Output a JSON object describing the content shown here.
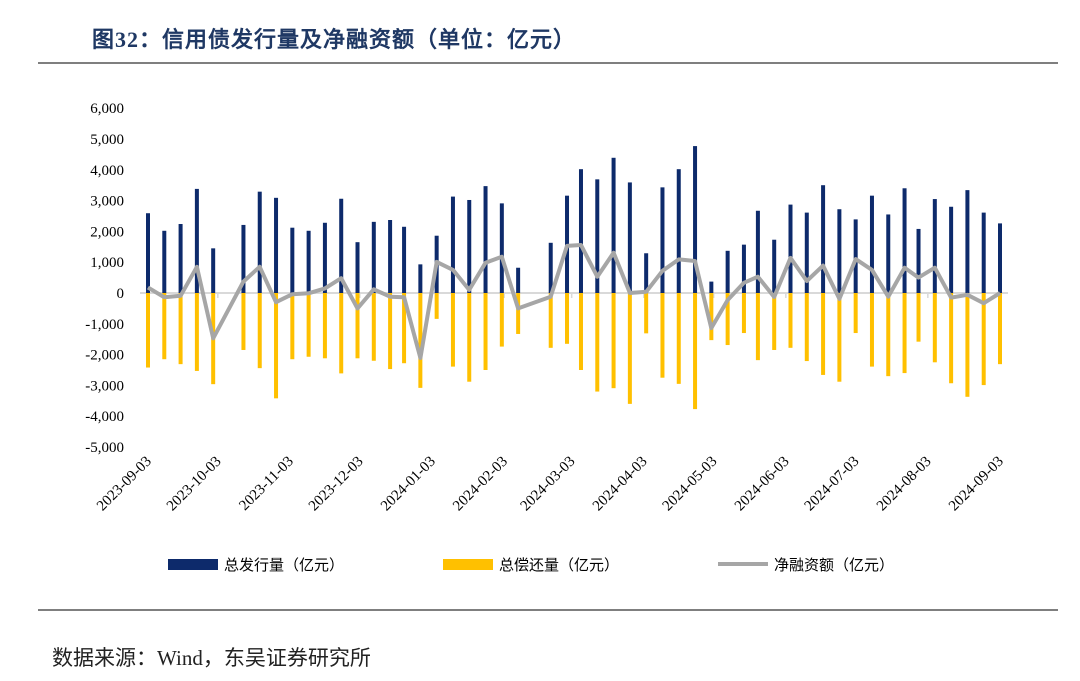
{
  "title": "图32：信用债发行量及净融资额（单位：亿元）",
  "source": "数据来源：Wind，东吴证券研究所",
  "colors": {
    "issuance": "#0d2a6b",
    "repayment": "#ffc000",
    "net": "#a6a6a6",
    "title": "#1f3864"
  },
  "chart_data": {
    "type": "bar",
    "title": "",
    "xlabel": "",
    "ylabel": "",
    "ylim": [
      -5000,
      6000
    ],
    "yticks": [
      6000,
      5000,
      4000,
      3000,
      2000,
      1000,
      0,
      -1000,
      -2000,
      -3000,
      -4000,
      -5000
    ],
    "ytick_labels": [
      "6,000",
      "5,000",
      "4,000",
      "3,000",
      "2,000",
      "1,000",
      "0",
      "-1,000",
      "-2,000",
      "-3,000",
      "-4,000",
      "-5,000"
    ],
    "xtick_labels": [
      "2023-09-03",
      "2023-10-03",
      "2023-11-03",
      "2023-12-03",
      "2024-01-03",
      "2024-02-03",
      "2024-03-03",
      "2024-04-03",
      "2024-05-03",
      "2024-06-03",
      "2024-07-03",
      "2024-08-03",
      "2024-09-03"
    ],
    "grid": false,
    "legend_position": "bottom",
    "x": [
      "2023-09-03",
      "2023-09-10",
      "2023-09-17",
      "2023-09-24",
      "2023-10-01",
      "2023-10-14",
      "2023-10-21",
      "2023-10-28",
      "2023-11-04",
      "2023-11-11",
      "2023-11-18",
      "2023-11-25",
      "2023-12-02",
      "2023-12-09",
      "2023-12-16",
      "2023-12-22",
      "2023-12-29",
      "2024-01-05",
      "2024-01-12",
      "2024-01-19",
      "2024-01-26",
      "2024-02-02",
      "2024-02-09",
      "2024-02-23",
      "2024-03-01",
      "2024-03-07",
      "2024-03-14",
      "2024-03-21",
      "2024-03-28",
      "2024-04-04",
      "2024-04-11",
      "2024-04-18",
      "2024-04-25",
      "2024-05-02",
      "2024-05-09",
      "2024-05-16",
      "2024-05-22",
      "2024-05-29",
      "2024-06-05",
      "2024-06-12",
      "2024-06-19",
      "2024-06-26",
      "2024-07-03",
      "2024-07-10",
      "2024-07-17",
      "2024-07-24",
      "2024-07-30",
      "2024-08-06",
      "2024-08-13",
      "2024-08-20",
      "2024-08-27",
      "2024-09-03"
    ],
    "series": [
      {
        "name": "总发行量（亿元）",
        "kind": "bar",
        "values": [
          2590,
          2020,
          2240,
          3380,
          1450,
          2210,
          3290,
          3090,
          2120,
          2020,
          2280,
          3060,
          1650,
          2310,
          2370,
          2150,
          930,
          1860,
          3130,
          3020,
          3470,
          2910,
          820,
          1630,
          3160,
          4020,
          3690,
          4390,
          3590,
          1290,
          3430,
          4020,
          4770,
          370,
          1370,
          1570,
          2670,
          1730,
          2870,
          2610,
          3500,
          2720,
          2390,
          3160,
          2550,
          3400,
          2080,
          3050,
          2800,
          3340,
          2610,
          2260
        ]
      },
      {
        "name": "总偿还量（亿元）",
        "kind": "bar",
        "values": [
          -2420,
          -2150,
          -2310,
          -2530,
          -2960,
          -1850,
          -2440,
          -3420,
          -2150,
          -2070,
          -2120,
          -2610,
          -2120,
          -2200,
          -2470,
          -2280,
          -3080,
          -840,
          -2390,
          -2880,
          -2500,
          -1740,
          -1330,
          -1780,
          -1650,
          -2500,
          -3200,
          -3090,
          -3600,
          -1310,
          -2750,
          -2950,
          -3770,
          -1530,
          -1690,
          -1300,
          -2180,
          -1850,
          -1780,
          -2210,
          -2660,
          -2880,
          -1300,
          -2390,
          -2700,
          -2600,
          -1580,
          -2250,
          -2930,
          -3370,
          -2990,
          -2310
        ]
      },
      {
        "name": "净融资额（亿元）",
        "kind": "line",
        "values": [
          180,
          -140,
          -90,
          850,
          -1470,
          370,
          850,
          -300,
          -40,
          -10,
          150,
          480,
          -500,
          120,
          -120,
          -140,
          -2110,
          1010,
          750,
          100,
          980,
          1180,
          -500,
          -120,
          1530,
          1560,
          530,
          1310,
          0,
          40,
          720,
          1090,
          1040,
          -1140,
          -230,
          330,
          530,
          -130,
          1140,
          390,
          890,
          -190,
          1100,
          750,
          -120,
          820,
          500,
          820,
          -150,
          -60,
          -330,
          0
        ]
      }
    ]
  }
}
